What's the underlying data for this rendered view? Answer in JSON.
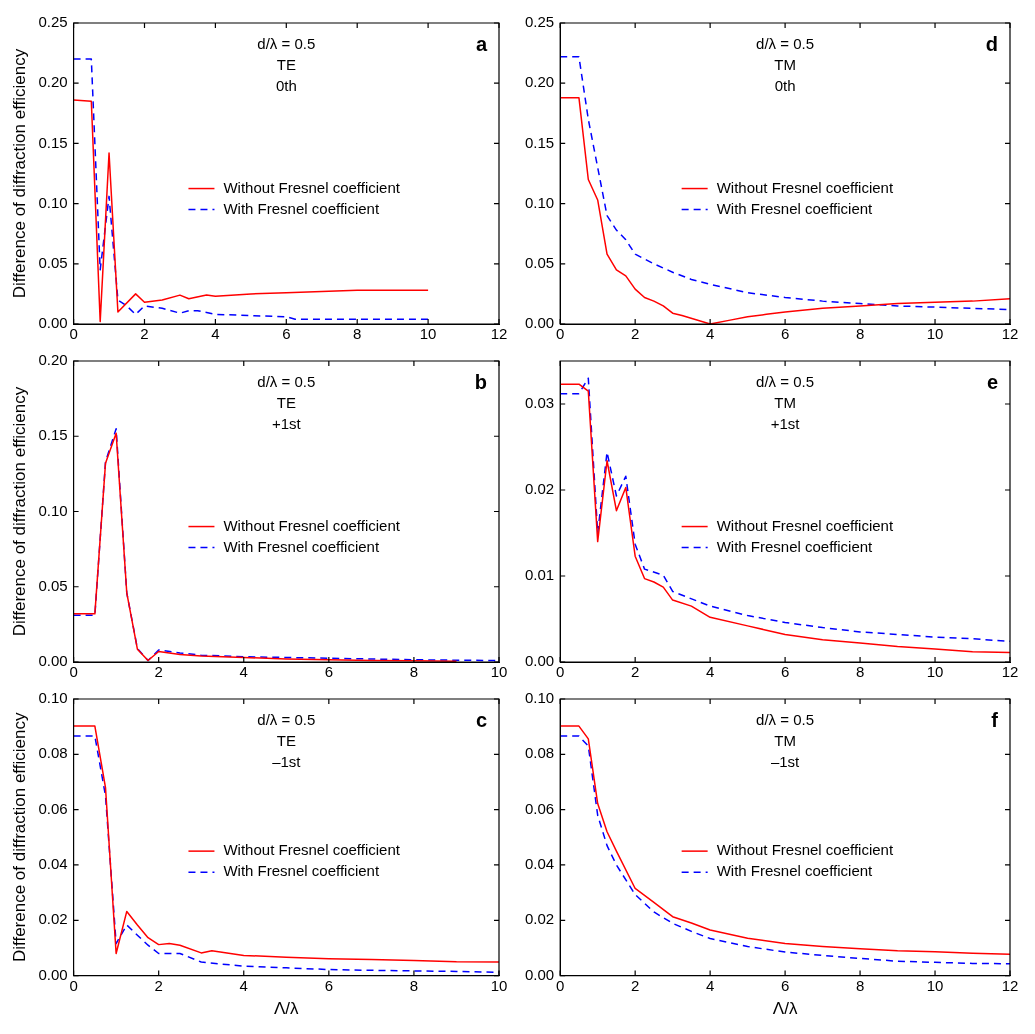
{
  "chart_data": [
    {
      "type": "line",
      "ylabel": "Difference of diffraction efficiency",
      "annotations": [
        "d/λ = 0.5",
        "TE",
        "0th",
        "a"
      ],
      "legend": "right",
      "grid": false,
      "xlim": [
        0,
        12
      ],
      "xticks": [
        0,
        2,
        4,
        6,
        8,
        10,
        12
      ],
      "ylim": [
        0,
        0.25
      ],
      "yticks": [
        {
          "value": 0,
          "label": "0.00"
        },
        0.05,
        {
          "value": 0.1,
          "label": "0.10"
        },
        0.15,
        {
          "value": 0.2,
          "label": "0.20"
        },
        0.25
      ],
      "series": [
        {
          "name": "Without Fresnel coefficient",
          "color": "#ff0000",
          "line_style": "solid",
          "x": [
            0,
            0.5,
            0.75,
            1,
            1.25,
            1.75,
            2,
            2.5,
            3,
            3.25,
            3.75,
            4,
            5,
            6,
            7,
            8,
            9,
            10
          ],
          "values": [
            0.186,
            0.185,
            0.002,
            0.142,
            0.01,
            0.025,
            0.018,
            0.02,
            0.024,
            0.021,
            0.024,
            0.023,
            0.025,
            0.026,
            0.027,
            0.028,
            0.028,
            0.028
          ]
        },
        {
          "name": "With Fresnel coefficient",
          "color": "#0000ff",
          "line_style": "dashed",
          "x": [
            0,
            0.5,
            0.75,
            1,
            1.25,
            1.5,
            1.75,
            2,
            2.5,
            3,
            3.25,
            3.5,
            4,
            5,
            6,
            6.25,
            7,
            8,
            9,
            10
          ],
          "values": [
            0.22,
            0.22,
            0.045,
            0.106,
            0.02,
            0.015,
            0.008,
            0.015,
            0.013,
            0.009,
            0.011,
            0.011,
            0.008,
            0.007,
            0.006,
            0.004,
            0.004,
            0.004,
            0.004,
            0.004
          ]
        }
      ]
    },
    {
      "type": "line",
      "annotations": [
        "d/λ = 0.5",
        "TM",
        "0th",
        "d"
      ],
      "legend": "right",
      "grid": false,
      "xlim": [
        0,
        12
      ],
      "xticks": [
        0,
        2,
        4,
        6,
        8,
        10,
        12
      ],
      "ylim": [
        0,
        0.25
      ],
      "yticks": [
        {
          "value": 0,
          "label": "0.00"
        },
        0.05,
        {
          "value": 0.1,
          "label": "0.10"
        },
        0.15,
        {
          "value": 0.2,
          "label": "0.20"
        },
        0.25
      ],
      "series": [
        {
          "name": "Without Fresnel coefficient",
          "color": "#ff0000",
          "line_style": "solid",
          "x": [
            0,
            0.5,
            0.75,
            1,
            1.25,
            1.5,
            1.75,
            2,
            2.25,
            2.5,
            2.75,
            3,
            3.25,
            4,
            4.5,
            5,
            5.5,
            6,
            7,
            8,
            9,
            10,
            11,
            12
          ],
          "values": [
            0.188,
            0.188,
            0.12,
            0.103,
            0.058,
            0.045,
            0.04,
            0.029,
            0.022,
            0.019,
            0.015,
            0.009,
            0.007,
            0,
            0.003,
            0.006,
            0.008,
            0.01,
            0.013,
            0.015,
            0.017,
            0.018,
            0.019,
            0.021
          ]
        },
        {
          "name": "With Fresnel coefficient",
          "color": "#0000ff",
          "line_style": "dashed",
          "x": [
            0,
            0.5,
            0.75,
            1,
            1.25,
            1.5,
            1.75,
            2,
            2.5,
            3,
            3.5,
            4,
            5,
            6,
            7,
            8,
            9,
            10,
            11,
            12
          ],
          "values": [
            0.222,
            0.222,
            0.17,
            0.13,
            0.09,
            0.078,
            0.07,
            0.058,
            0.05,
            0.043,
            0.037,
            0.033,
            0.026,
            0.022,
            0.019,
            0.017,
            0.015,
            0.014,
            0.013,
            0.012
          ]
        }
      ]
    },
    {
      "type": "line",
      "ylabel": "Difference of diffraction efficiency",
      "annotations": [
        "d/λ = 0.5",
        "TE",
        "+1st",
        "b"
      ],
      "legend": "right",
      "grid": false,
      "xlim": [
        0,
        10
      ],
      "xticks": [
        0,
        2,
        4,
        6,
        8,
        10
      ],
      "ylim": [
        0,
        0.2
      ],
      "yticks": [
        {
          "value": 0,
          "label": "0.00"
        },
        0.05,
        {
          "value": 0.1,
          "label": "0.10"
        },
        0.15,
        {
          "value": 0.2,
          "label": "0.20"
        }
      ],
      "series": [
        {
          "name": "Without Fresnel coefficient",
          "color": "#ff0000",
          "line_style": "solid",
          "x": [
            0,
            0.5,
            0.75,
            1,
            1.25,
            1.5,
            1.75,
            2,
            2.5,
            3,
            4,
            5,
            6,
            7,
            8,
            9
          ],
          "values": [
            0.032,
            0.032,
            0.132,
            0.152,
            0.046,
            0.0085,
            0.001,
            0.007,
            0.005,
            0.004,
            0.003,
            0.002,
            0.0015,
            0.001,
            0.0008,
            0.0005
          ]
        },
        {
          "name": "With Fresnel coefficient",
          "color": "#0000ff",
          "line_style": "dashed",
          "x": [
            0,
            0.5,
            0.75,
            1,
            1.25,
            1.5,
            1.75,
            2,
            2.5,
            3,
            4,
            5,
            6,
            7,
            8,
            9,
            10
          ],
          "values": [
            0.031,
            0.031,
            0.133,
            0.155,
            0.046,
            0.009,
            0.001,
            0.008,
            0.006,
            0.0045,
            0.0035,
            0.003,
            0.0025,
            0.002,
            0.0015,
            0.0012,
            0.001
          ]
        }
      ]
    },
    {
      "type": "line",
      "annotations": [
        "d/λ = 0.5",
        "TM",
        "+1st",
        "e"
      ],
      "legend": "right",
      "grid": false,
      "xlim": [
        0,
        12
      ],
      "xticks": [
        0,
        2,
        4,
        6,
        8,
        10,
        12
      ],
      "ylim": [
        0,
        0.035
      ],
      "yticks": [
        {
          "value": 0,
          "label": "0.00"
        },
        {
          "value": 0.01,
          "label": "0.01"
        },
        {
          "value": 0.02,
          "label": "0.02"
        },
        {
          "value": 0.03,
          "label": "0.03"
        }
      ],
      "series": [
        {
          "name": "Without Fresnel coefficient",
          "color": "#ff0000",
          "line_style": "solid",
          "x": [
            0,
            0.5,
            0.75,
            1,
            1.25,
            1.5,
            1.75,
            2,
            2.25,
            2.5,
            2.75,
            3,
            3.5,
            4,
            5,
            5.5,
            6,
            7,
            8,
            9,
            10,
            11,
            12
          ],
          "values": [
            0.0323,
            0.0323,
            0.0315,
            0.014,
            0.0234,
            0.0176,
            0.0203,
            0.0123,
            0.0097,
            0.0093,
            0.0087,
            0.0072,
            0.0065,
            0.0052,
            0.0042,
            0.0037,
            0.0032,
            0.0026,
            0.0022,
            0.0018,
            0.0015,
            0.0012,
            0.0011
          ]
        },
        {
          "name": "With Fresnel coefficient",
          "color": "#0000ff",
          "line_style": "dashed",
          "x": [
            0,
            0.5,
            0.75,
            1,
            1.25,
            1.5,
            1.75,
            2,
            2.25,
            2.75,
            3,
            4,
            5,
            6,
            7,
            8,
            9,
            10,
            11,
            12
          ],
          "values": [
            0.0312,
            0.0312,
            0.033,
            0.015,
            0.0244,
            0.0193,
            0.0216,
            0.0137,
            0.0108,
            0.0101,
            0.0082,
            0.0065,
            0.0054,
            0.0046,
            0.004,
            0.0035,
            0.0032,
            0.0029,
            0.0027,
            0.0024
          ]
        }
      ]
    },
    {
      "type": "line",
      "ylabel": "Difference of diffraction efficiency",
      "xlabel": "Λ/λ",
      "annotations": [
        "d/λ = 0.5",
        "TE",
        "–1st",
        "c"
      ],
      "legend": "right",
      "grid": false,
      "xlim": [
        0,
        10
      ],
      "xticks": [
        0,
        2,
        4,
        6,
        8,
        10
      ],
      "ylim": [
        0,
        0.1
      ],
      "yticks": [
        {
          "value": 0,
          "label": "0.00"
        },
        0.02,
        0.04,
        0.06,
        0.08,
        {
          "value": 0.1,
          "label": "0.10"
        }
      ],
      "series": [
        {
          "name": "Without Fresnel coefficient",
          "color": "#ff0000",
          "line_style": "solid",
          "x": [
            0,
            0.5,
            0.75,
            1,
            1.25,
            1.5,
            1.75,
            2,
            2.25,
            2.5,
            3,
            3.25,
            4,
            5,
            6,
            7,
            8,
            9,
            10
          ],
          "values": [
            0.0902,
            0.0902,
            0.068,
            0.008,
            0.0232,
            0.0183,
            0.0137,
            0.0112,
            0.0116,
            0.011,
            0.0082,
            0.009,
            0.0073,
            0.0066,
            0.0061,
            0.0058,
            0.0055,
            0.005,
            0.0049
          ]
        },
        {
          "name": "With Fresnel coefficient",
          "color": "#0000ff",
          "line_style": "dashed",
          "x": [
            0,
            0.5,
            0.75,
            1,
            1.25,
            1.5,
            1.75,
            2,
            2.5,
            3,
            4,
            5,
            6,
            7,
            8,
            9,
            10
          ],
          "values": [
            0.0866,
            0.0866,
            0.065,
            0.0116,
            0.0183,
            0.0146,
            0.011,
            0.008,
            0.008,
            0.0049,
            0.0034,
            0.0028,
            0.0022,
            0.0019,
            0.0017,
            0.0015,
            0.0012
          ]
        }
      ]
    },
    {
      "type": "line",
      "xlabel": "Λ/λ",
      "annotations": [
        "d/λ = 0.5",
        "TM",
        "–1st",
        "f"
      ],
      "legend": "right",
      "grid": false,
      "xlim": [
        0,
        12
      ],
      "xticks": [
        0,
        2,
        4,
        6,
        8,
        10,
        12
      ],
      "ylim": [
        0,
        0.1
      ],
      "yticks": [
        {
          "value": 0,
          "label": "0.00"
        },
        0.02,
        0.04,
        0.06,
        0.08,
        {
          "value": 0.1,
          "label": "0.10"
        }
      ],
      "series": [
        {
          "name": "Without Fresnel coefficient",
          "color": "#ff0000",
          "line_style": "solid",
          "x": [
            0,
            0.5,
            0.75,
            1,
            1.25,
            1.5,
            2,
            2.5,
            3,
            3.5,
            4,
            5,
            6,
            7,
            8,
            9,
            10,
            11,
            12
          ],
          "values": [
            0.0902,
            0.0902,
            0.0856,
            0.0622,
            0.052,
            0.045,
            0.0315,
            0.0265,
            0.0213,
            0.019,
            0.0165,
            0.0135,
            0.0116,
            0.0105,
            0.0097,
            0.009,
            0.0086,
            0.0081,
            0.0077
          ]
        },
        {
          "name": "With Fresnel coefficient",
          "color": "#0000ff",
          "line_style": "dashed",
          "x": [
            0,
            0.5,
            0.75,
            1,
            1.25,
            1.5,
            2,
            2.5,
            3,
            3.5,
            4,
            5,
            6,
            7,
            8,
            9,
            10,
            11,
            12
          ],
          "values": [
            0.0866,
            0.0866,
            0.083,
            0.058,
            0.047,
            0.04,
            0.0293,
            0.023,
            0.0189,
            0.016,
            0.0134,
            0.0105,
            0.0085,
            0.0073,
            0.0062,
            0.0052,
            0.0048,
            0.0044,
            0.0043
          ]
        }
      ]
    }
  ]
}
